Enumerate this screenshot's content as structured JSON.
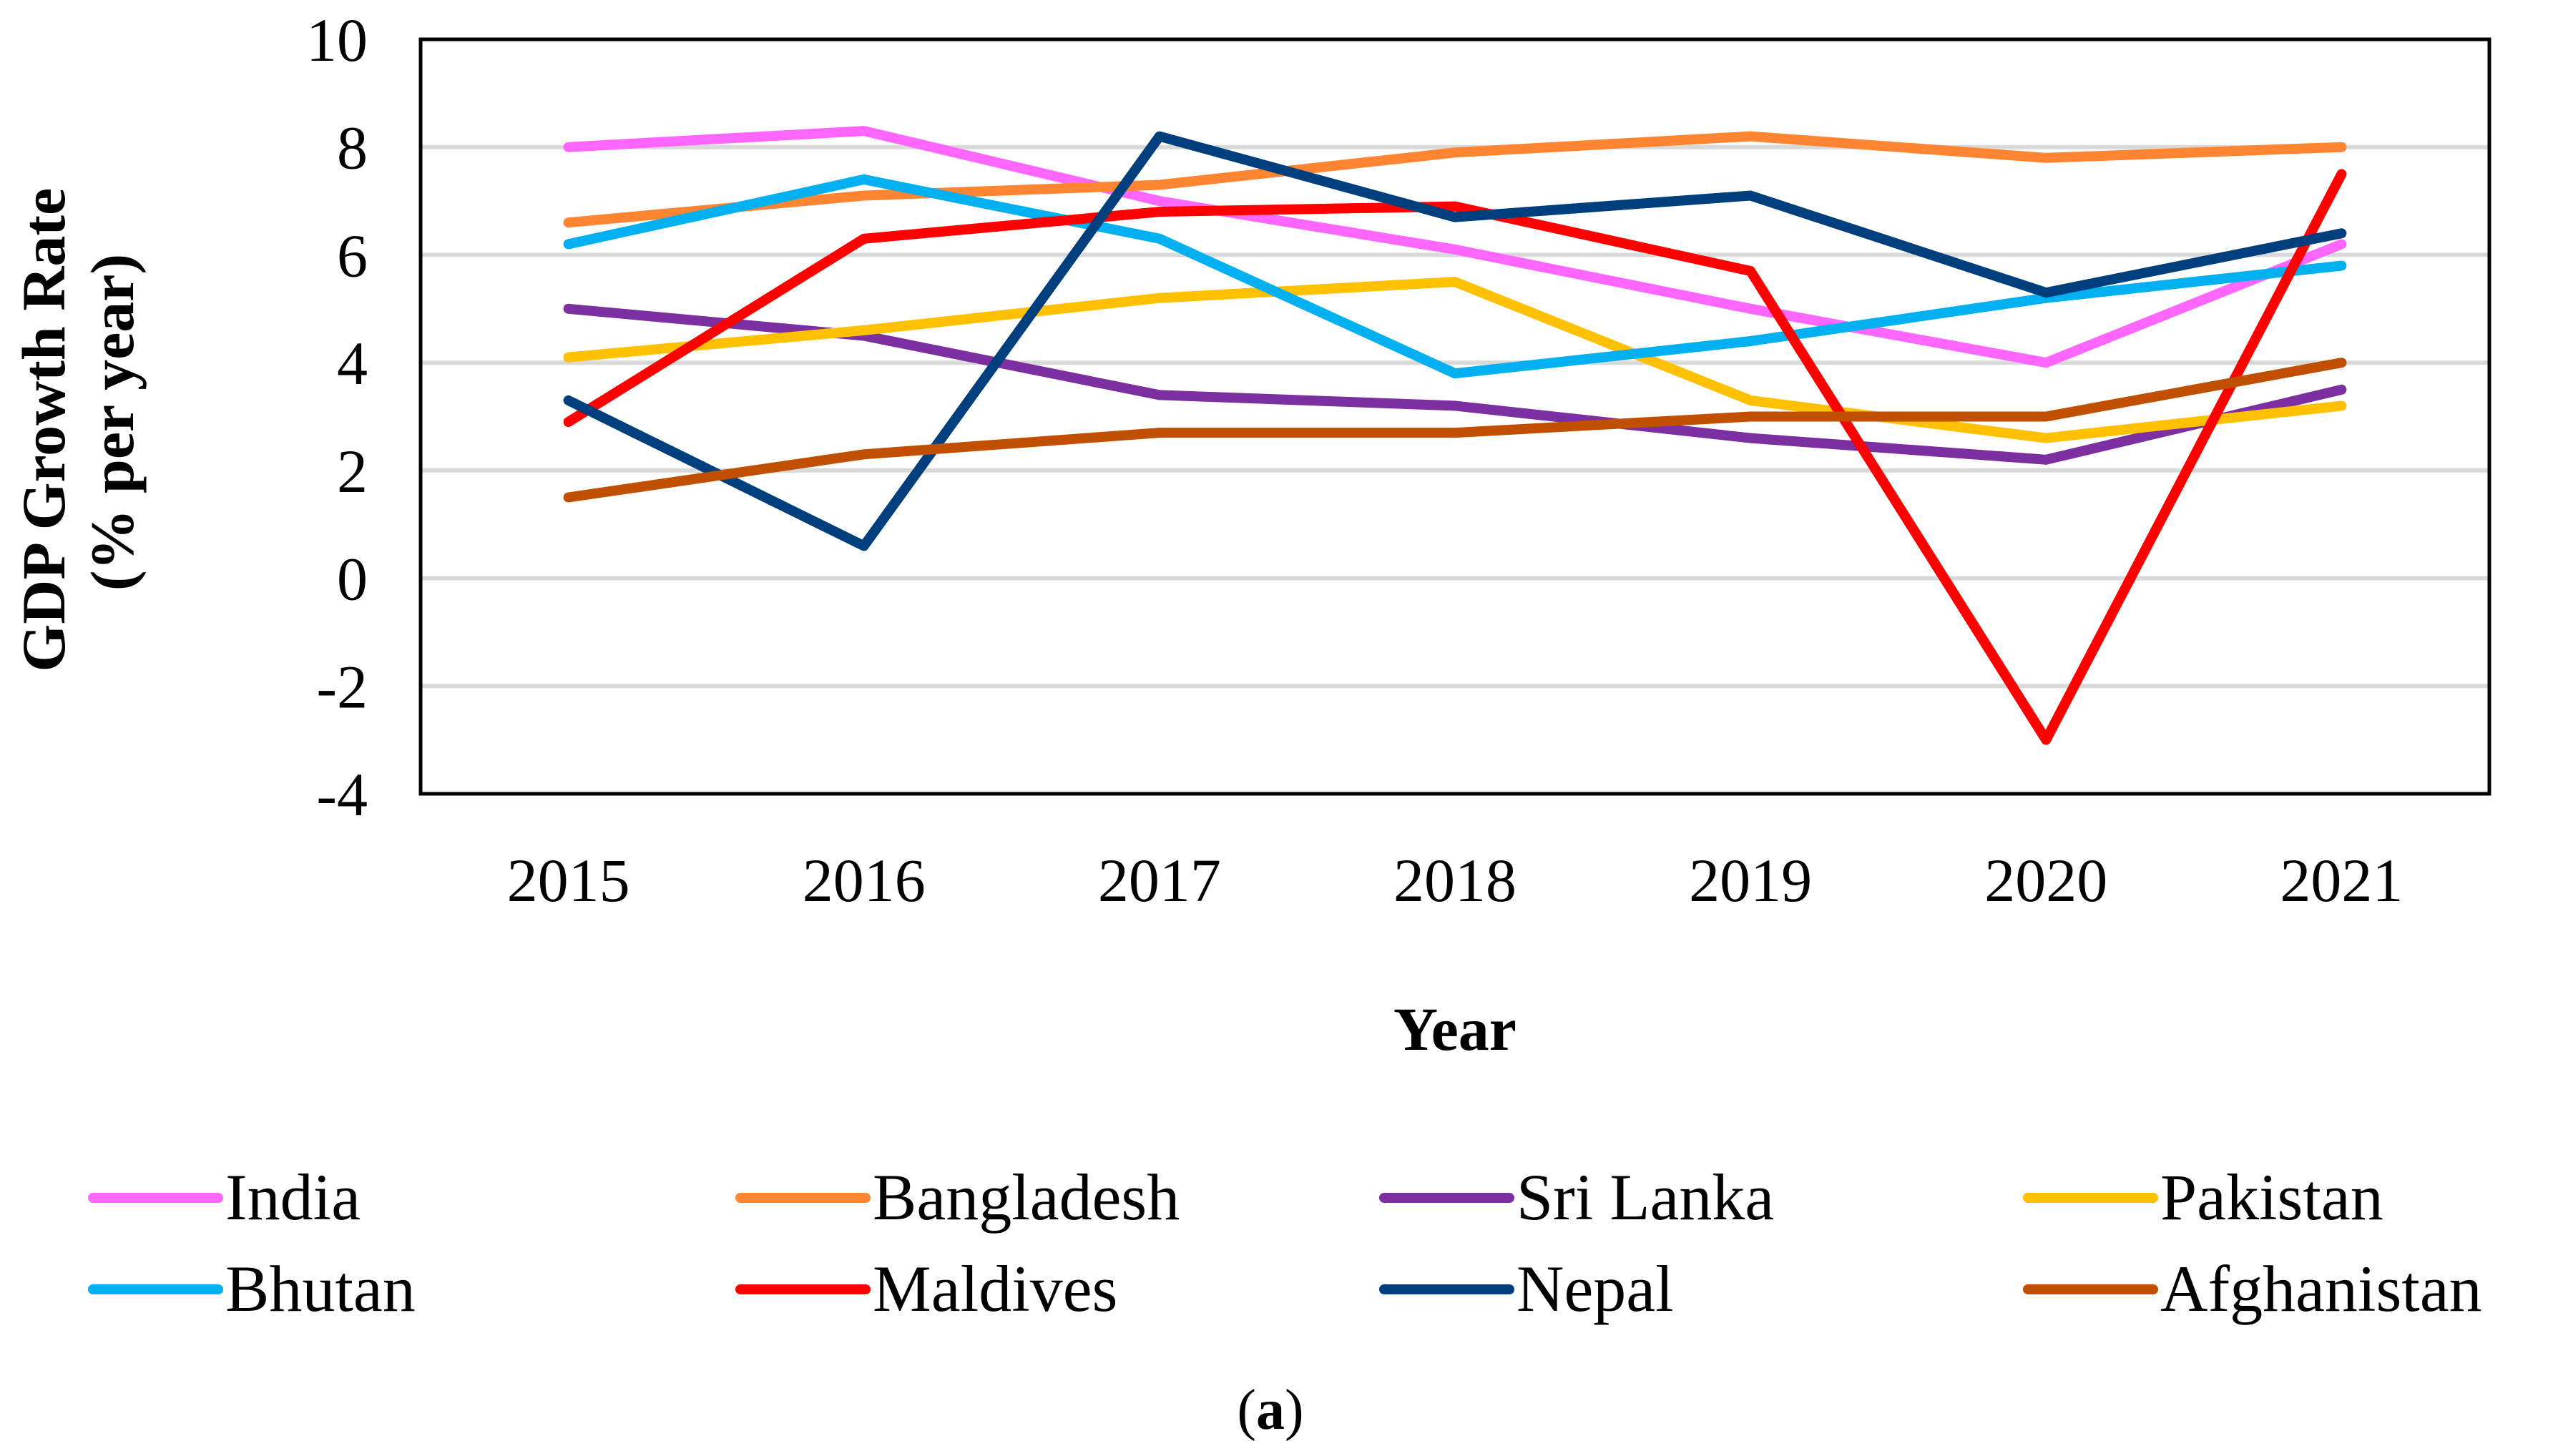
{
  "chart_data": {
    "type": "line",
    "xlabel": "Year",
    "ylabel_line1": "GDP Growth Rate",
    "ylabel_line2": "(% per year)",
    "caption_open": "(",
    "caption_letter": "a",
    "caption_close": ")",
    "x": [
      "2015",
      "2016",
      "2017",
      "2018",
      "2019",
      "2020",
      "2021"
    ],
    "ylim": [
      -4,
      10
    ],
    "yticks": [
      -4,
      -2,
      0,
      2,
      4,
      6,
      8,
      10
    ],
    "grid": true,
    "legend_position": "bottom",
    "series": [
      {
        "name": "India",
        "color": "#FF66FF",
        "values": [
          8.0,
          8.3,
          7.0,
          6.1,
          5.0,
          4.0,
          6.2
        ]
      },
      {
        "name": "Bangladesh",
        "color": "#FF8533",
        "values": [
          6.6,
          7.1,
          7.3,
          7.9,
          8.2,
          7.8,
          8.0
        ]
      },
      {
        "name": "Sri Lanka",
        "color": "#7B2FA0",
        "values": [
          5.0,
          4.5,
          3.4,
          3.2,
          2.6,
          2.2,
          3.5
        ]
      },
      {
        "name": "Pakistan",
        "color": "#FFC000",
        "values": [
          4.1,
          4.6,
          5.2,
          5.5,
          3.3,
          2.6,
          3.2
        ]
      },
      {
        "name": "Bhutan",
        "color": "#00B0F0",
        "values": [
          6.2,
          7.4,
          6.3,
          3.8,
          4.4,
          5.2,
          5.8
        ]
      },
      {
        "name": "Maldives",
        "color": "#FF0000",
        "values": [
          2.9,
          6.3,
          6.8,
          6.9,
          5.7,
          -3.0,
          7.5
        ]
      },
      {
        "name": "Nepal",
        "color": "#003F7D",
        "values": [
          3.3,
          0.6,
          8.2,
          6.7,
          7.1,
          5.3,
          6.4
        ]
      },
      {
        "name": "Afghanistan",
        "color": "#C05000",
        "values": [
          1.5,
          2.3,
          2.7,
          2.7,
          3.0,
          3.0,
          4.0
        ]
      }
    ]
  }
}
